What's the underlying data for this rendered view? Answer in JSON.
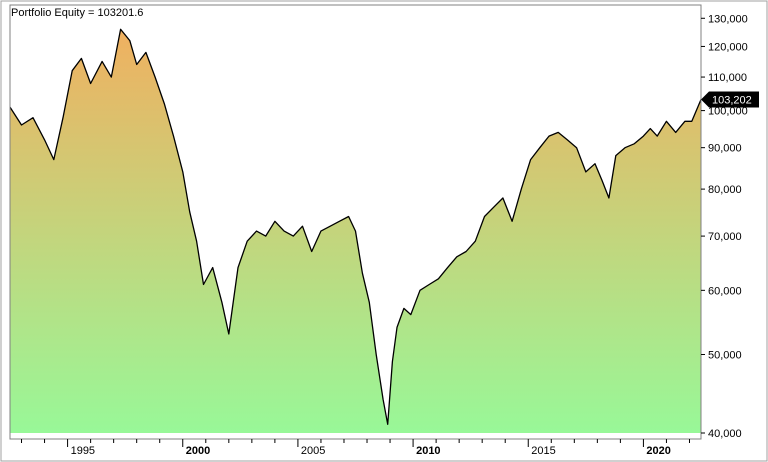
{
  "chart_data": {
    "type": "area",
    "title": "Portfolio Equity = 103201.6",
    "xlabel": "",
    "ylabel": "",
    "y_scale": "log",
    "ylim": [
      40000,
      135000
    ],
    "xlim": [
      1992.5,
      2022.5
    ],
    "y_ticks": [
      {
        "value": 40000,
        "label": "40,000"
      },
      {
        "value": 50000,
        "label": "50,000"
      },
      {
        "value": 60000,
        "label": "60,000"
      },
      {
        "value": 70000,
        "label": "70,000"
      },
      {
        "value": 80000,
        "label": "80,000"
      },
      {
        "value": 90000,
        "label": "90,000"
      },
      {
        "value": 100000,
        "label": "100,000"
      },
      {
        "value": 110000,
        "label": "110,000"
      },
      {
        "value": 120000,
        "label": "120,000"
      },
      {
        "value": 130000,
        "label": "130,000"
      }
    ],
    "x_ticks": [
      {
        "value": 1995,
        "label": "1995",
        "bold": false
      },
      {
        "value": 2000,
        "label": "2000",
        "bold": true
      },
      {
        "value": 2005,
        "label": "2005",
        "bold": false
      },
      {
        "value": 2010,
        "label": "2010",
        "bold": true
      },
      {
        "value": 2015,
        "label": "2015",
        "bold": false
      },
      {
        "value": 2020,
        "label": "2020",
        "bold": true
      }
    ],
    "last_value_label": "103,202",
    "grid": false,
    "gradient": {
      "top": "#f0b060",
      "bottom": "#98f898"
    },
    "line_color": "#000000",
    "series": [
      {
        "x": [
          1992.5,
          1993.0,
          1993.5,
          1994.0,
          1994.4,
          1994.8,
          1995.2,
          1995.6,
          1996.0,
          1996.5,
          1996.9,
          1997.3,
          1997.7,
          1998.0,
          1998.4,
          1998.8,
          1999.2,
          1999.6,
          2000.0,
          2000.3,
          2000.6,
          2000.9,
          2001.3,
          2001.7,
          2002.0,
          2002.4,
          2002.8,
          2003.2,
          2003.6,
          2004.0,
          2004.4,
          2004.8,
          2005.2,
          2005.6,
          2006.0,
          2006.4,
          2006.8,
          2007.2,
          2007.5,
          2007.8,
          2008.1,
          2008.4,
          2008.7,
          2008.9,
          2009.1,
          2009.3,
          2009.6,
          2009.9,
          2010.3,
          2010.7,
          2011.1,
          2011.5,
          2011.9,
          2012.3,
          2012.7,
          2013.1,
          2013.5,
          2013.9,
          2014.3,
          2014.7,
          2015.1,
          2015.5,
          2015.9,
          2016.3,
          2016.7,
          2017.1,
          2017.5,
          2017.9,
          2018.2,
          2018.5,
          2018.8,
          2019.2,
          2019.6,
          2020.0,
          2020.3,
          2020.6,
          2021.0,
          2021.4,
          2021.8,
          2022.1,
          2022.5
        ],
        "values": [
          101000,
          96000,
          98000,
          92000,
          87000,
          98000,
          112000,
          116000,
          108000,
          115000,
          110000,
          126000,
          122000,
          114000,
          118000,
          110000,
          102000,
          93000,
          84000,
          75000,
          69000,
          61000,
          64000,
          58000,
          53000,
          64000,
          69000,
          71000,
          70000,
          73000,
          71000,
          70000,
          72000,
          67000,
          71000,
          72000,
          73000,
          74000,
          71000,
          63000,
          58000,
          50000,
          44000,
          41000,
          49000,
          54000,
          57000,
          56000,
          60000,
          61000,
          62000,
          64000,
          66000,
          67000,
          69000,
          74000,
          76000,
          78000,
          73000,
          80000,
          87000,
          90000,
          93000,
          94000,
          92000,
          90000,
          84000,
          86000,
          82000,
          78000,
          88000,
          90000,
          91000,
          93000,
          95000,
          93000,
          97000,
          94000,
          97000,
          97000,
          103201.6
        ]
      }
    ]
  }
}
